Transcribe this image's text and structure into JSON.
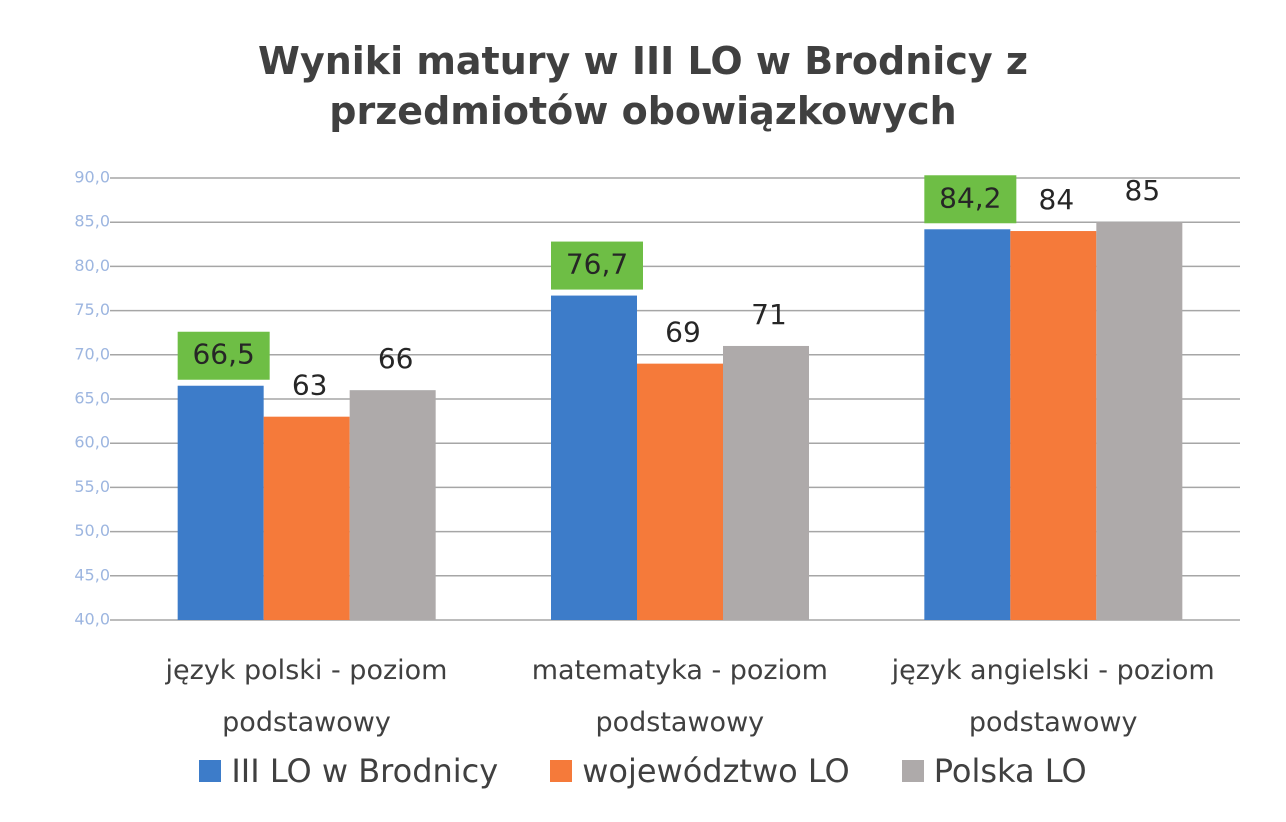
{
  "chart_data": {
    "type": "bar",
    "title": "Wyniki matury w III LO w Brodnicy z przedmiotów obowiązkowych",
    "categories": [
      "język polski - poziom podstawowy",
      "matematyka - poziom podstawowy",
      "język angielski - poziom podstawowy"
    ],
    "series": [
      {
        "name": "III LO w Brodnicy",
        "color": "#3d7cc9",
        "values": [
          66.5,
          76.7,
          84.2
        ],
        "value_labels": [
          "66,5",
          "76,7",
          "84,2"
        ],
        "label_background": "#6ebe45"
      },
      {
        "name": "województwo LO",
        "color": "#f57a3a",
        "values": [
          63,
          69,
          84
        ]
      },
      {
        "name": "Polska LO",
        "color": "#aeaaaa",
        "values": [
          66,
          71,
          85
        ]
      }
    ],
    "ylim": [
      40,
      90
    ],
    "yticks": [
      {
        "value": 40,
        "label": "40,0"
      },
      {
        "value": 45,
        "label": "45,0"
      },
      {
        "value": 50,
        "label": "50,0"
      },
      {
        "value": 55,
        "label": "55,0"
      },
      {
        "value": 60,
        "label": "60,0"
      },
      {
        "value": 65,
        "label": "65,0"
      },
      {
        "value": 70,
        "label": "70,0"
      },
      {
        "value": 75,
        "label": "75,0"
      },
      {
        "value": 80,
        "label": "80,0"
      },
      {
        "value": 85,
        "label": "85,0"
      },
      {
        "value": 90,
        "label": "90,0"
      }
    ],
    "grid": true,
    "legend": "bottom"
  }
}
